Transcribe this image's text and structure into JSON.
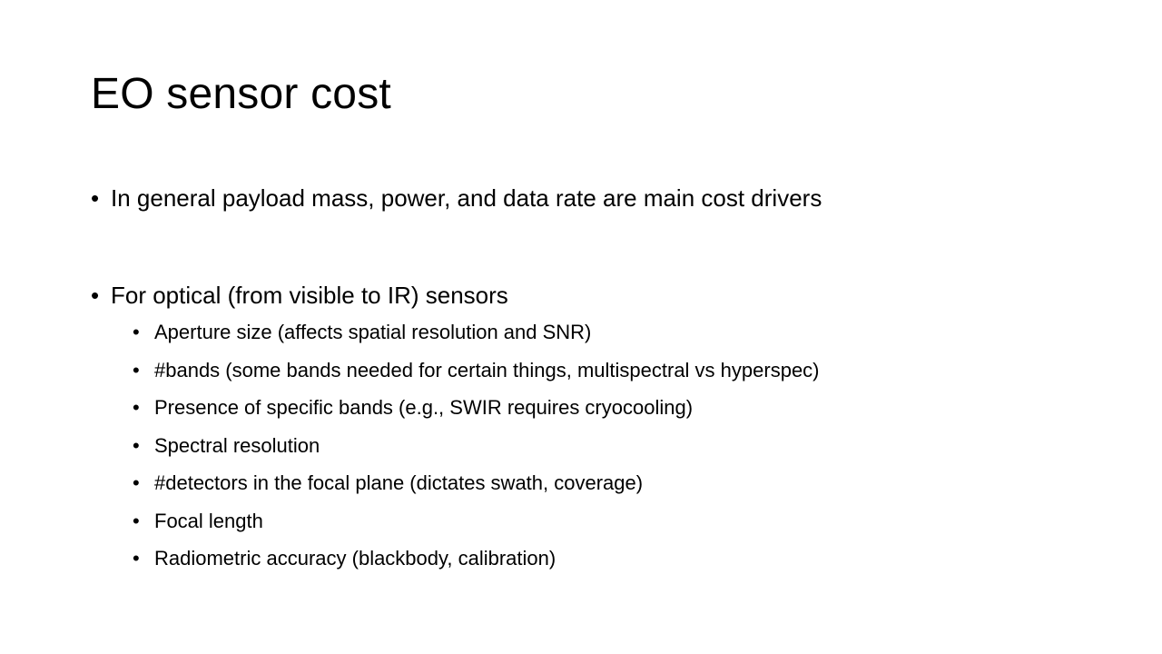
{
  "slide": {
    "title": "EO sensor cost",
    "bullet_char": "•",
    "bullets": [
      "In general payload mass, power, and data rate are main cost drivers",
      "For optical (from visible to IR) sensors"
    ],
    "sub_bullets": [
      "Aperture size (affects spatial resolution and SNR)",
      "#bands (some bands needed for certain things, multispectral vs hyperspec)",
      "Presence of specific bands (e.g., SWIR requires cryocooling)",
      "Spectral resolution",
      "#detectors in the focal plane (dictates swath, coverage)",
      "Focal length",
      "Radiometric accuracy (blackbody, calibration)"
    ]
  }
}
